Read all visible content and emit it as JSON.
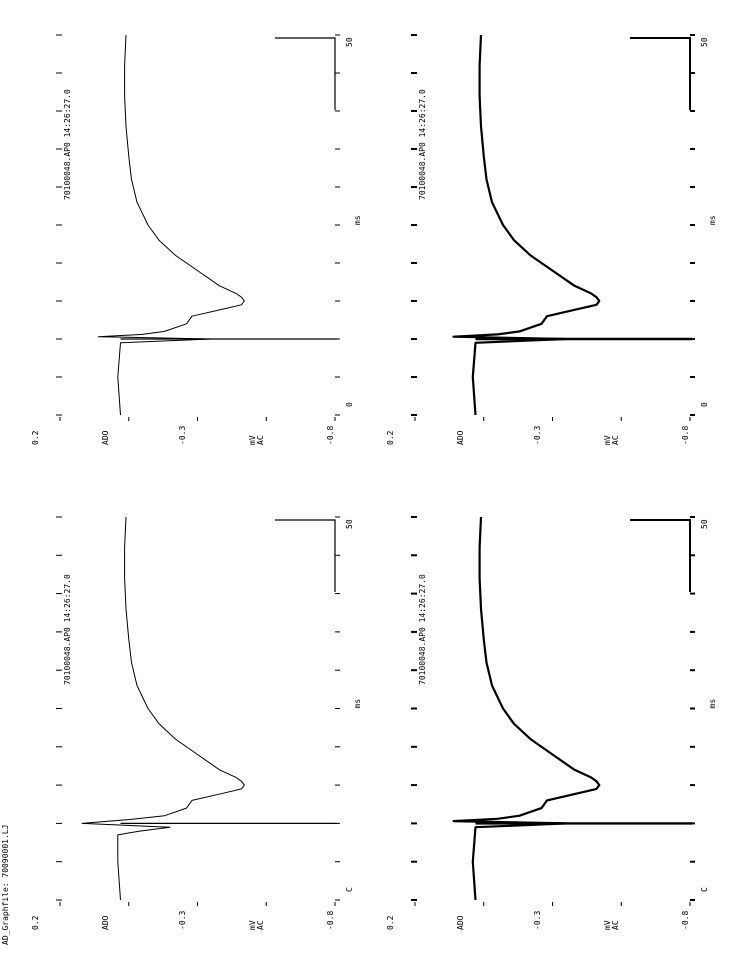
{
  "page_header": "AD_Graphfile: 70090001.LJ",
  "chart_data": [
    {
      "type": "line",
      "trace_label": "70100048.AP0   14:26:27.0",
      "xlabel": "ms",
      "ylabel_top": "mV",
      "ylabel_bottom": "AC",
      "xlim": [
        0,
        50
      ],
      "ylim": [
        -0.8,
        0.2
      ],
      "x_tick_labels": [
        "C",
        "ms",
        "50"
      ],
      "y_tick_labels": [
        "0.2",
        "ADO",
        "-0.3",
        "mV",
        "-0.8"
      ],
      "scale_bar_label": "50",
      "series": [
        {
          "x": [
            0,
            5,
            8.5,
            9.0,
            9.5,
            10.0,
            10.5,
            11.0,
            12.0,
            13.0,
            14.0,
            14.5,
            15.0,
            15.5,
            16.0,
            17.0,
            19.0,
            21.0,
            23.0,
            25.0,
            28.0,
            31.0,
            34.0,
            38.0,
            42.0,
            46.0,
            50.0
          ],
          "y": [
            -0.02,
            -0.01,
            -0.01,
            -0.09,
            -0.2,
            0.12,
            -0.05,
            -0.18,
            -0.26,
            -0.28,
            -0.4,
            -0.46,
            -0.47,
            -0.46,
            -0.44,
            -0.38,
            -0.3,
            -0.22,
            -0.16,
            -0.12,
            -0.08,
            -0.06,
            -0.05,
            -0.04,
            -0.035,
            -0.035,
            -0.04
          ]
        }
      ]
    },
    {
      "type": "line",
      "trace_label": "70100048.AP0   14:26:27.0",
      "xlabel": "ms",
      "ylabel_top": "mV",
      "ylabel_bottom": "AC",
      "xlim": [
        0,
        50
      ],
      "ylim": [
        -0.8,
        0.2
      ],
      "x_tick_labels": [
        "0",
        "ms",
        "50"
      ],
      "y_tick_labels": [
        "0.2",
        "ADO",
        "-0.3",
        "mV",
        "-0.8"
      ],
      "scale_bar_label": "50",
      "series": [
        {
          "x": [
            0,
            5,
            9.5,
            10.0,
            10.3,
            10.6,
            11.0,
            12.0,
            13.0,
            14.0,
            14.5,
            15.0,
            15.5,
            16.0,
            17.0,
            19.0,
            21.0,
            23.0,
            25.0,
            28.0,
            31.0,
            34.0,
            38.0,
            42.0,
            46.0,
            50.0
          ],
          "y": [
            -0.02,
            -0.01,
            -0.02,
            -0.35,
            0.06,
            -0.1,
            -0.18,
            -0.26,
            -0.28,
            -0.4,
            -0.46,
            -0.47,
            -0.46,
            -0.44,
            -0.38,
            -0.3,
            -0.22,
            -0.16,
            -0.12,
            -0.08,
            -0.06,
            -0.05,
            -0.04,
            -0.035,
            -0.035,
            -0.04
          ]
        }
      ]
    },
    {
      "type": "line",
      "trace_label": "70100048.AP0   14:26:27.0",
      "xlabel": "ms",
      "ylabel_top": "mV",
      "ylabel_bottom": "AC",
      "xlim": [
        0,
        50
      ],
      "ylim": [
        -0.8,
        0.2
      ],
      "x_tick_labels": [
        "C",
        "ms",
        "50"
      ],
      "y_tick_labels": [
        "0.2",
        "ADO",
        "-0.3",
        "mV",
        "-0.8"
      ],
      "scale_bar_label": "50",
      "series": [
        {
          "x": [
            0,
            5,
            9.5,
            10.0,
            10.3,
            10.6,
            11.0,
            12.0,
            13.0,
            14.0,
            14.5,
            15.0,
            15.5,
            16.0,
            17.0,
            19.0,
            21.0,
            23.0,
            25.0,
            28.0,
            31.0,
            34.0,
            38.0,
            42.0,
            46.0,
            50.0
          ],
          "y": [
            -0.02,
            -0.01,
            -0.02,
            -0.35,
            0.06,
            -0.1,
            -0.18,
            -0.26,
            -0.28,
            -0.4,
            -0.46,
            -0.47,
            -0.46,
            -0.44,
            -0.38,
            -0.3,
            -0.22,
            -0.16,
            -0.12,
            -0.08,
            -0.06,
            -0.05,
            -0.04,
            -0.035,
            -0.035,
            -0.04
          ]
        }
      ]
    },
    {
      "type": "line",
      "trace_label": "70100048.AP0   14:26:27.0",
      "xlabel": "ms",
      "ylabel_top": "mV",
      "ylabel_bottom": "AC",
      "xlim": [
        0,
        50
      ],
      "ylim": [
        -0.8,
        0.2
      ],
      "x_tick_labels": [
        "0",
        "ms",
        "50"
      ],
      "y_tick_labels": [
        "0.2",
        "ADO",
        "-0.3",
        "mV",
        "-0.8"
      ],
      "scale_bar_label": "50",
      "series": [
        {
          "x": [
            0,
            5,
            9.5,
            10.0,
            10.3,
            10.6,
            11.0,
            12.0,
            13.0,
            14.0,
            14.5,
            15.0,
            15.5,
            16.0,
            17.0,
            19.0,
            21.0,
            23.0,
            25.0,
            28.0,
            31.0,
            34.0,
            38.0,
            42.0,
            46.0,
            50.0
          ],
          "y": [
            -0.02,
            -0.01,
            -0.02,
            -0.35,
            0.06,
            -0.1,
            -0.18,
            -0.26,
            -0.28,
            -0.4,
            -0.46,
            -0.47,
            -0.46,
            -0.44,
            -0.38,
            -0.3,
            -0.22,
            -0.16,
            -0.12,
            -0.08,
            -0.06,
            -0.05,
            -0.04,
            -0.035,
            -0.035,
            -0.04
          ]
        }
      ]
    }
  ]
}
